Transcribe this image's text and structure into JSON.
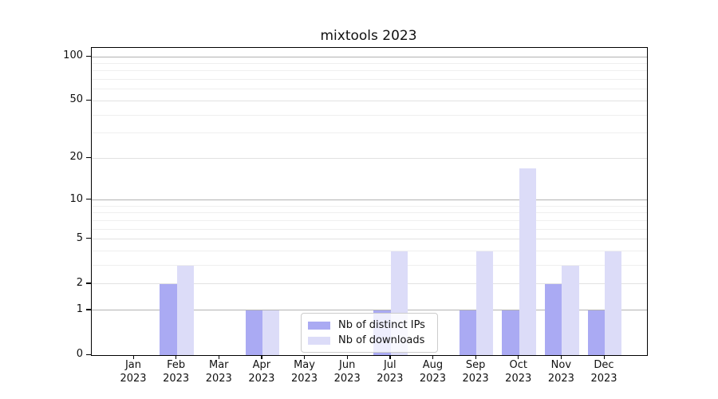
{
  "chart_data": {
    "type": "bar",
    "title": "mixtools 2023",
    "categories": [
      "Jan",
      "Feb",
      "Mar",
      "Apr",
      "May",
      "Jun",
      "Jul",
      "Aug",
      "Sep",
      "Oct",
      "Nov",
      "Dec"
    ],
    "x_tick_year": "2023",
    "series": [
      {
        "name": "Nb of distinct IPs",
        "color": "#aaaaf3",
        "values": [
          0,
          2,
          0,
          1,
          0,
          0,
          1,
          0,
          1,
          1,
          2,
          1
        ]
      },
      {
        "name": "Nb of downloads",
        "color": "#dcdcf8",
        "values": [
          0,
          3,
          0,
          1,
          0,
          0,
          4,
          0,
          4,
          17,
          3,
          4
        ]
      }
    ],
    "y_axis": {
      "scale": "log1p",
      "tick_labels": [
        "0",
        "1",
        "2",
        "5",
        "10",
        "20",
        "50",
        "100"
      ],
      "tick_values": [
        0,
        1,
        2,
        5,
        10,
        20,
        50,
        100
      ],
      "major_gridlines": [
        1,
        10,
        100
      ],
      "mid_gridlines": [
        2,
        5,
        20,
        50
      ],
      "minor_gridlines": [
        3,
        4,
        6,
        7,
        8,
        9,
        30,
        40,
        60,
        70,
        80,
        90
      ],
      "ylim": [
        0,
        115
      ]
    },
    "legend_position": "inside-bottom-center",
    "colors": {
      "major_grid": "#b2b2b2",
      "mid_grid": "#e2e2e2",
      "minor_grid": "#efefef",
      "spine": "#000000"
    }
  }
}
